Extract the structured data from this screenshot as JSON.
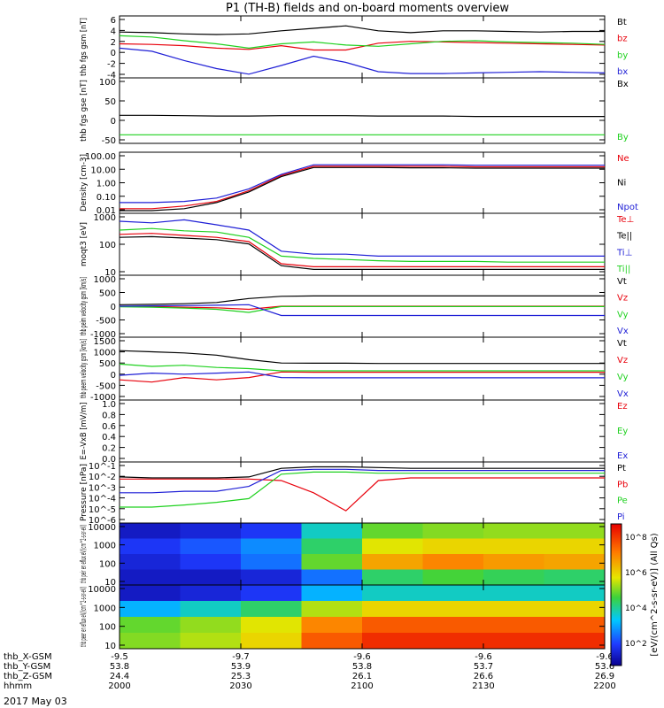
{
  "title": "P1 (TH-B) fields and on-board moments overview",
  "date_label": "2017 May 03",
  "colorbar_label": "[eV/(cm^2-s-sr-eV)] (All Qs)",
  "colorbar_ticks": [
    "10^8",
    "10^6",
    "10^4",
    "10^2"
  ],
  "colors": {
    "black": "#000000",
    "red": "#e8000b",
    "green": "#1fd11f",
    "blue": "#1f1fd6"
  },
  "xaxis_rows": [
    {
      "label": "thb_X-GSM",
      "values": [
        "-9.5",
        "-9.7",
        "-9.6",
        "-9.6",
        "-9.6"
      ]
    },
    {
      "label": "thb_Y-GSM",
      "values": [
        "53.8",
        "53.9",
        "53.8",
        "53.7",
        "53.6"
      ]
    },
    {
      "label": "thb_Z-GSM",
      "values": [
        "24.4",
        "25.3",
        "26.1",
        "26.6",
        "26.9"
      ]
    },
    {
      "label": "hhmm",
      "values": [
        "2000",
        "2030",
        "2100",
        "2130",
        "2200"
      ]
    }
  ],
  "chart_data": [
    {
      "type": "line",
      "ylabel": "thb fgs gsm [nT]",
      "yticks": [
        "6",
        "4",
        "2",
        "0",
        "-2",
        "-4"
      ],
      "ylim": [
        -4,
        6
      ],
      "series": [
        {
          "name": "Bt",
          "color": "black",
          "values": [
            3.4,
            3.3,
            3.1,
            3.0,
            3.1,
            3.6,
            4.0,
            4.4,
            3.6,
            3.3,
            3.6,
            3.6,
            3.5,
            3.4,
            3.5,
            3.5
          ]
        },
        {
          "name": "bz",
          "color": "red",
          "values": [
            1.5,
            1.4,
            1.2,
            0.8,
            0.6,
            1.2,
            0.5,
            0.5,
            1.6,
            1.9,
            1.8,
            1.7,
            1.6,
            1.5,
            1.4,
            1.3
          ]
        },
        {
          "name": "by",
          "color": "green",
          "values": [
            2.8,
            2.6,
            2.0,
            1.5,
            0.8,
            1.5,
            1.8,
            1.3,
            1.1,
            1.5,
            1.9,
            2.0,
            1.8,
            1.7,
            1.6,
            1.4
          ]
        },
        {
          "name": "bx",
          "color": "blue",
          "values": [
            0.8,
            0.3,
            -1.2,
            -2.5,
            -3.4,
            -2.0,
            -0.5,
            -1.5,
            -3.0,
            -3.3,
            -3.3,
            -3.2,
            -3.1,
            -3.0,
            -3.1,
            -3.2
          ]
        }
      ]
    },
    {
      "type": "line",
      "ylabel": "thb fgs gse [nT]",
      "yticks": [
        "100",
        "50",
        "0",
        "-50"
      ],
      "ylim": [
        -75,
        100
      ],
      "series": [
        {
          "name": "Bx",
          "color": "black",
          "values": [
            0,
            0,
            -1,
            -2,
            -2,
            -1,
            -1,
            -1,
            -2,
            -2,
            -2,
            -3,
            -3,
            -3,
            -3,
            -3
          ]
        },
        {
          "name": "By",
          "color": "green",
          "values": [
            -52,
            -52,
            -52,
            -52,
            -52,
            -52,
            -52,
            -52,
            -52,
            -52,
            -52,
            -52,
            -52,
            -52,
            -52,
            -52
          ]
        }
      ]
    },
    {
      "type": "line",
      "ylabel": "Density [cm-3]",
      "yscale": "log",
      "yticks": [
        "100.00",
        "10.00",
        "1.00",
        "0.10",
        "0.01"
      ],
      "ylim": [
        0.01,
        100
      ],
      "series": [
        {
          "name": "Ne",
          "color": "red",
          "values": [
            0.02,
            0.02,
            0.03,
            0.06,
            0.3,
            3.0,
            12,
            12,
            12,
            12,
            12,
            11,
            11,
            11,
            11,
            11
          ]
        },
        {
          "name": "Ni",
          "color": "black",
          "values": [
            0.015,
            0.015,
            0.02,
            0.05,
            0.25,
            2.5,
            10,
            10,
            10,
            9.5,
            9.5,
            9,
            9,
            9,
            9,
            9
          ]
        },
        {
          "name": "Npot",
          "color": "blue",
          "values": [
            0.05,
            0.05,
            0.06,
            0.1,
            0.4,
            3.5,
            15,
            15,
            15,
            15,
            15,
            14,
            14,
            14,
            14,
            14
          ]
        }
      ]
    },
    {
      "type": "line",
      "ylabel": "moqt3 [eV]",
      "yscale": "log",
      "yticks": [
        "1000",
        "100",
        "10"
      ],
      "ylim": [
        4,
        1500
      ],
      "series": [
        {
          "name": "Te⊥",
          "color": "red",
          "values": [
            200,
            220,
            180,
            150,
            100,
            12,
            9,
            9,
            9,
            9,
            9,
            9,
            9,
            9,
            9,
            9
          ]
        },
        {
          "name": "Te||",
          "color": "black",
          "values": [
            150,
            160,
            140,
            120,
            80,
            10,
            7,
            7,
            7,
            7,
            7,
            7,
            7,
            7,
            7,
            7
          ]
        },
        {
          "name": "Ti⊥",
          "color": "blue",
          "values": [
            700,
            600,
            800,
            500,
            300,
            40,
            30,
            30,
            25,
            25,
            25,
            25,
            25,
            25,
            25,
            25
          ]
        },
        {
          "name": "Ti||",
          "color": "green",
          "values": [
            300,
            350,
            280,
            250,
            150,
            25,
            20,
            18,
            16,
            15,
            15,
            15,
            14,
            14,
            14,
            14
          ]
        }
      ]
    },
    {
      "type": "line",
      "ylabel": "thb peim velocity gsm [km/s]",
      "yticks": [
        "1000",
        "500",
        "0",
        "-500",
        "-1000"
      ],
      "ylim": [
        -1000,
        1000
      ],
      "series": [
        {
          "name": "Vt",
          "color": "black",
          "values": [
            50,
            60,
            80,
            120,
            250,
            320,
            330,
            330,
            330,
            330,
            330,
            330,
            330,
            330,
            330,
            330
          ]
        },
        {
          "name": "Vz",
          "color": "red",
          "values": [
            0,
            -10,
            -30,
            -50,
            -100,
            0,
            0,
            0,
            0,
            0,
            0,
            0,
            0,
            0,
            0,
            0
          ]
        },
        {
          "name": "Vy",
          "color": "green",
          "values": [
            -20,
            -30,
            -60,
            -100,
            -200,
            -10,
            -10,
            -10,
            -10,
            -10,
            -10,
            -10,
            -10,
            -10,
            -10,
            -10
          ]
        },
        {
          "name": "Vx",
          "color": "blue",
          "values": [
            0,
            10,
            20,
            30,
            50,
            -300,
            -300,
            -300,
            -300,
            -300,
            -300,
            -300,
            -300,
            -300,
            -300,
            -300
          ]
        }
      ]
    },
    {
      "type": "line",
      "ylabel": "thb peem velocity gsm [km/s]",
      "yticks": [
        "1500",
        "1000",
        "500",
        "0",
        "-500",
        "-1000"
      ],
      "ylim": [
        -1300,
        1500
      ],
      "series": [
        {
          "name": "Vt",
          "color": "black",
          "values": [
            900,
            850,
            800,
            700,
            500,
            350,
            340,
            340,
            330,
            330,
            330,
            330,
            330,
            330,
            330,
            330
          ]
        },
        {
          "name": "Vz",
          "color": "red",
          "values": [
            -400,
            -500,
            -300,
            -400,
            -300,
            -50,
            -60,
            -60,
            -60,
            -60,
            -60,
            -60,
            -60,
            -60,
            -60,
            -60
          ]
        },
        {
          "name": "Vy",
          "color": "green",
          "values": [
            300,
            200,
            250,
            150,
            100,
            0,
            0,
            0,
            0,
            0,
            0,
            0,
            0,
            0,
            0,
            0
          ]
        },
        {
          "name": "Vx",
          "color": "blue",
          "values": [
            -200,
            -100,
            -150,
            -100,
            -50,
            -300,
            -310,
            -310,
            -310,
            -310,
            -310,
            -310,
            -310,
            -310,
            -310,
            -310
          ]
        }
      ]
    },
    {
      "type": "line",
      "ylabel": "E=-VxB [mV/m]",
      "yticks": [
        "1.0",
        "0.8",
        "0.6",
        "0.4",
        "0.2",
        "0.0"
      ],
      "ylim": [
        0,
        1
      ],
      "series": [
        {
          "name": "Ez",
          "color": "red",
          "values": []
        },
        {
          "name": "Ey",
          "color": "green",
          "values": []
        },
        {
          "name": "Ex",
          "color": "blue",
          "values": []
        }
      ]
    },
    {
      "type": "line",
      "ylabel": "Pressure [nPa]",
      "yscale": "log",
      "yticks": [
        "10^-1",
        "10^-2",
        "10^-3",
        "10^-4",
        "10^-5",
        "10^-6"
      ],
      "ylim": [
        1e-06,
        0.1
      ],
      "series": [
        {
          "name": "Pt",
          "color": "black",
          "values": [
            0.006,
            0.005,
            0.005,
            0.005,
            0.006,
            0.03,
            0.04,
            0.04,
            0.035,
            0.03,
            0.03,
            0.03,
            0.03,
            0.03,
            0.03,
            0.03
          ]
        },
        {
          "name": "Pb",
          "color": "red",
          "values": [
            0.004,
            0.004,
            0.004,
            0.004,
            0.004,
            0.003,
            0.0003,
            1e-05,
            0.003,
            0.005,
            0.005,
            0.005,
            0.005,
            0.005,
            0.005,
            0.005
          ]
        },
        {
          "name": "Pe",
          "color": "green",
          "values": [
            2e-05,
            2e-05,
            3e-05,
            5e-05,
            0.0001,
            0.01,
            0.015,
            0.015,
            0.012,
            0.012,
            0.012,
            0.012,
            0.012,
            0.012,
            0.012,
            0.012
          ]
        },
        {
          "name": "Pi",
          "color": "blue",
          "values": [
            0.0003,
            0.0003,
            0.0004,
            0.0004,
            0.001,
            0.02,
            0.025,
            0.025,
            0.02,
            0.02,
            0.02,
            0.02,
            0.02,
            0.02,
            0.02,
            0.02
          ]
        }
      ]
    },
    {
      "type": "heatmap",
      "ylabel": "thb peir en eflux eV/(cm^2-s-sr-eV)",
      "yscale": "log",
      "yticks": [
        "10000",
        "1000",
        "100",
        "10"
      ],
      "ylim": [
        5,
        25000
      ],
      "x_times": [
        "2000",
        "2030",
        "2100",
        "2130",
        "2200"
      ],
      "description_bands": "ion flux: noisy low-level before 2025, intense band 200-800 eV after",
      "log_flux_bins": [
        [
          3.0,
          3.2,
          3.5,
          5.0,
          6.0,
          6.2,
          6.3,
          6.3
        ],
        [
          3.5,
          3.8,
          4.2,
          5.5,
          6.8,
          7.0,
          7.0,
          7.0
        ],
        [
          3.2,
          3.5,
          4.0,
          6.0,
          7.5,
          7.8,
          7.6,
          7.5
        ],
        [
          3.0,
          3.0,
          3.2,
          4.0,
          5.5,
          5.8,
          5.6,
          5.5
        ]
      ]
    },
    {
      "type": "heatmap",
      "ylabel": "thb peer en eflux eV/(cm^2-s-sr-eV)",
      "yscale": "log",
      "yticks": [
        "10000",
        "1000",
        "100",
        "10"
      ],
      "ylim": [
        5,
        25000
      ],
      "x_times": [
        "2000",
        "2030",
        "2100",
        "2130",
        "2200"
      ],
      "log_flux_bins": [
        [
          3.0,
          3.2,
          3.5,
          4.5,
          5.0,
          5.0,
          5.0,
          5.0
        ],
        [
          4.5,
          5.0,
          5.5,
          6.5,
          7.0,
          7.0,
          7.0,
          7.0
        ],
        [
          6.0,
          6.3,
          6.8,
          7.8,
          8.2,
          8.2,
          8.2,
          8.2
        ],
        [
          6.2,
          6.5,
          7.0,
          8.2,
          8.6,
          8.6,
          8.6,
          8.6
        ]
      ]
    }
  ]
}
